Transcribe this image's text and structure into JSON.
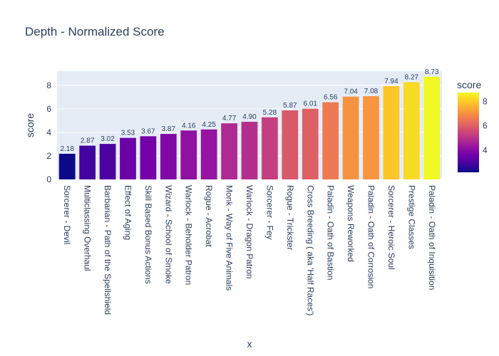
{
  "chart_data": {
    "type": "bar",
    "title": "Depth - Normalized Score",
    "xlabel": "x",
    "ylabel": "score",
    "ylim": [
      0,
      9.2
    ],
    "yticks": [
      0,
      2,
      4,
      6,
      8
    ],
    "grid": true,
    "categories": [
      "Sorcerer - Devil",
      "Multiclassing Overhaul",
      "Barbarian - Path of the Spellshield",
      "Effect of Aging",
      "Skill Based Bonus Actions",
      "Wizard - School of Smoke",
      "Warlock - Beholder Patron",
      "Rogue - Acrobat",
      "Monk - Way of Five Animals",
      "Warlock - Dragon Patron",
      "Sorcerer - Fey",
      "Rogue - Trickster",
      "Cross Breeding ( aka 'Half Races')",
      "Paladin - Oath of Bastion",
      "Weapons Reworked",
      "Paladin - Oath of Corrosion",
      "Sorcerer - Heroic Soul",
      "Prestige Classes",
      "Paladin - Oath of Inquisition"
    ],
    "values": [
      2.18,
      2.87,
      3.02,
      3.53,
      3.67,
      3.87,
      4.16,
      4.25,
      4.77,
      4.9,
      5.28,
      5.87,
      6.01,
      6.56,
      7.04,
      7.08,
      7.94,
      8.27,
      8.73
    ],
    "data_labels": [
      "2.18",
      "2.87",
      "3.02",
      "3.53",
      "3.67",
      "3.87",
      "4.16",
      "4.25",
      "4.77",
      "4.90",
      "5.28",
      "5.87",
      "6.01",
      "6.56",
      "7.04",
      "7.08",
      "7.94",
      "8.27",
      "8.73"
    ],
    "colorbar": {
      "title": "score",
      "range": [
        2.18,
        8.73
      ],
      "ticks": [
        4,
        6,
        8
      ],
      "colorscale": [
        "#0d0887",
        "#46039f",
        "#7201a8",
        "#9c179e",
        "#bd3786",
        "#d8576b",
        "#ed7953",
        "#fb9f3a",
        "#fdca26",
        "#f0f921"
      ]
    },
    "colors": {
      "plot_background": "#e5ecf6",
      "gridline": "#ffffff",
      "text": "#2a3f5f"
    }
  }
}
